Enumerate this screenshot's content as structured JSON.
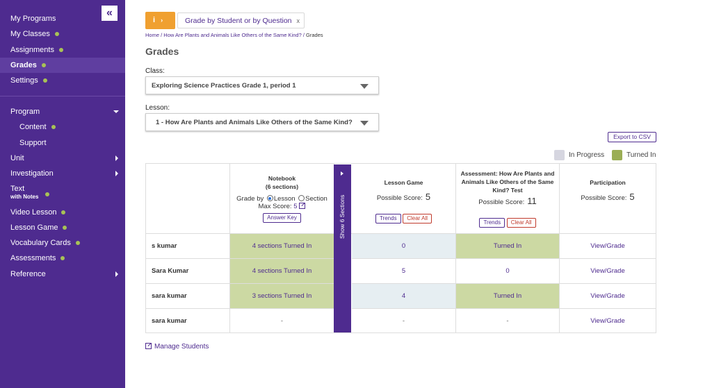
{
  "sidebar": {
    "collapse_icon": "double-chevron-left-icon",
    "items": [
      {
        "label": "My Programs"
      },
      {
        "label": "My Classes"
      },
      {
        "label": "Assignments"
      },
      {
        "label": "Grades"
      },
      {
        "label": "Settings"
      },
      {
        "label": "Program"
      },
      {
        "label": "Content"
      },
      {
        "label": "Support"
      },
      {
        "label": "Unit"
      },
      {
        "label": "Investigation"
      },
      {
        "label": "Text",
        "sublabel": "with Notes"
      },
      {
        "label": "Video Lesson"
      },
      {
        "label": "Lesson Game"
      },
      {
        "label": "Vocabulary Cards"
      },
      {
        "label": "Assessments"
      },
      {
        "label": "Reference"
      }
    ]
  },
  "toolbar": {
    "info_label": "i",
    "grade_by_tag": "Grade by Student or by Question",
    "grade_by_close": "x"
  },
  "breadcrumb": {
    "home": "Home",
    "sep": "/",
    "lesson": "How Are Plants and Animals Like Others of the Same Kind?",
    "current": "Grades"
  },
  "page_title": "Grades",
  "class_field": {
    "label": "Class:",
    "value": "Exploring Science Practices Grade 1, period 1"
  },
  "lesson_field": {
    "label": "Lesson:",
    "value": "1 - How Are Plants and Animals Like Others of the Same Kind?"
  },
  "export_label": "Export to CSV",
  "legend": {
    "in_progress": "In Progress",
    "turned_in": "Turned In",
    "colors": {
      "in_progress": "#d6d6e0",
      "turned_in": "#9bae55"
    }
  },
  "table": {
    "notebook": {
      "title": "Notebook",
      "subtitle": "(6 sections)",
      "grade_by": "Grade by",
      "opt_lesson": "Lesson",
      "opt_section": "Section",
      "max_score_label": "Max Score:",
      "max_score": "5",
      "answer_key": "Answer Key"
    },
    "show_sections": "Show 6 Sections",
    "lesson_game": {
      "title": "Lesson Game",
      "possible_label": "Possible Score:",
      "possible": "5",
      "trends": "Trends",
      "clear": "Clear All"
    },
    "assessment": {
      "title": "Assessment: How Are Plants and Animals Like Others of the Same Kind? Test",
      "possible_label": "Possible Score:",
      "possible": "11",
      "trends": "Trends",
      "clear": "Clear All"
    },
    "participation": {
      "title": "Participation",
      "possible_label": "Possible Score:",
      "possible": "5"
    },
    "rows": [
      {
        "name": "s kumar",
        "notebook": "4 sections Turned In",
        "game": "0",
        "assessment": "Turned In",
        "participation": "View/Grade"
      },
      {
        "name": "Sara Kumar",
        "notebook": "4 sections Turned In",
        "game": "5",
        "assessment": "0",
        "participation": "View/Grade"
      },
      {
        "name": "sara kumar",
        "notebook": "3 sections Turned In",
        "game": "4",
        "assessment": "Turned In",
        "participation": "View/Grade"
      },
      {
        "name": "sara kumar",
        "notebook": "-",
        "game": "-",
        "assessment": "-",
        "participation": "View/Grade"
      }
    ]
  },
  "manage_students": "Manage Students"
}
